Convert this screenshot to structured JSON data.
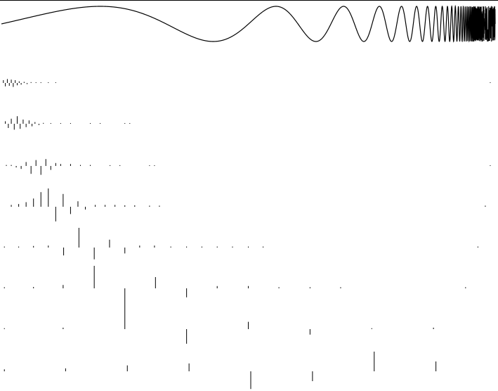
{
  "chart_data": [
    {
      "type": "line",
      "title": "",
      "xlabel": "",
      "ylabel": "",
      "grid": false,
      "legend": "none",
      "function": "sin(2*pi/(1-t))",
      "x_domain": [
        0,
        1
      ],
      "color": "#000000"
    },
    {
      "type": "stem",
      "title": "",
      "legend": "none",
      "grid": false,
      "color": "#000000",
      "rows": [
        {
          "scale": 1,
          "stems": [
            [
              0.004,
              0.5
            ],
            [
              0.008,
              -0.6
            ],
            [
              0.012,
              0.7
            ],
            [
              0.016,
              -0.5
            ],
            [
              0.02,
              0.6
            ],
            [
              0.024,
              -0.7
            ],
            [
              0.028,
              0.5
            ],
            [
              0.032,
              -0.4
            ],
            [
              0.036,
              0.3
            ],
            [
              0.04,
              -0.3
            ],
            [
              0.046,
              0.2
            ],
            [
              0.052,
              -0.2
            ],
            [
              0.06,
              0.15
            ],
            [
              0.07,
              -0.1
            ],
            [
              0.08,
              0.1
            ],
            [
              0.095,
              0.08
            ],
            [
              0.11,
              0.1
            ],
            [
              0.99,
              0.08
            ]
          ]
        },
        {
          "scale": 1,
          "stems": [
            [
              0.008,
              0.3
            ],
            [
              0.014,
              -0.5
            ],
            [
              0.02,
              0.6
            ],
            [
              0.026,
              -0.7
            ],
            [
              0.032,
              0.9
            ],
            [
              0.038,
              -0.6
            ],
            [
              0.044,
              0.5
            ],
            [
              0.05,
              -0.4
            ],
            [
              0.056,
              0.4
            ],
            [
              0.062,
              -0.3
            ],
            [
              0.068,
              0.2
            ],
            [
              0.076,
              -0.15
            ],
            [
              0.085,
              0.1
            ],
            [
              0.1,
              0.08
            ],
            [
              0.12,
              0.08
            ],
            [
              0.14,
              0.08
            ],
            [
              0.18,
              0.06
            ],
            [
              0.2,
              0.06
            ],
            [
              0.25,
              0.06
            ],
            [
              0.26,
              0.06
            ]
          ]
        },
        {
          "scale": 1,
          "stems": [
            [
              0.01,
              0.1
            ],
            [
              0.02,
              0.1
            ],
            [
              0.03,
              -0.15
            ],
            [
              0.04,
              -0.3
            ],
            [
              0.05,
              0.4
            ],
            [
              0.06,
              -0.8
            ],
            [
              0.07,
              0.6
            ],
            [
              0.08,
              -0.9
            ],
            [
              0.09,
              0.7
            ],
            [
              0.1,
              -0.4
            ],
            [
              0.11,
              0.3
            ],
            [
              0.12,
              0.2
            ],
            [
              0.14,
              0.2
            ],
            [
              0.16,
              0.1
            ],
            [
              0.18,
              0.1
            ],
            [
              0.22,
              0.08
            ],
            [
              0.24,
              0.08
            ],
            [
              0.3,
              0.06
            ],
            [
              0.31,
              0.06
            ],
            [
              0.99,
              0.06
            ]
          ]
        },
        {
          "scale": 1,
          "stems": [
            [
              0.02,
              0.1
            ],
            [
              0.035,
              0.15
            ],
            [
              0.05,
              0.25
            ],
            [
              0.065,
              0.45
            ],
            [
              0.08,
              0.8
            ],
            [
              0.095,
              1.0
            ],
            [
              0.11,
              -0.8
            ],
            [
              0.125,
              0.7
            ],
            [
              0.14,
              -0.4
            ],
            [
              0.155,
              0.3
            ],
            [
              0.17,
              -0.15
            ],
            [
              0.19,
              0.1
            ],
            [
              0.21,
              0.1
            ],
            [
              0.23,
              0.1
            ],
            [
              0.25,
              0.08
            ],
            [
              0.27,
              0.08
            ],
            [
              0.3,
              0.06
            ],
            [
              0.32,
              0.06
            ],
            [
              0.98,
              0.06
            ]
          ]
        },
        {
          "scale": 1,
          "stems": [
            [
              0.006,
              0.05
            ],
            [
              0.035,
              0.05
            ],
            [
              0.065,
              0.08
            ],
            [
              0.095,
              0.1
            ],
            [
              0.126,
              -0.4
            ],
            [
              0.157,
              1.0
            ],
            [
              0.188,
              -0.6
            ],
            [
              0.219,
              0.4
            ],
            [
              0.25,
              -0.3
            ],
            [
              0.28,
              0.1
            ],
            [
              0.31,
              0.1
            ],
            [
              0.343,
              0.05
            ],
            [
              0.375,
              0.05
            ],
            [
              0.406,
              0.05
            ],
            [
              0.437,
              0.05
            ],
            [
              0.468,
              0.05
            ],
            [
              0.5,
              0.05
            ],
            [
              0.53,
              0.05
            ],
            [
              0.965,
              0.05
            ]
          ]
        },
        {
          "scale": 1,
          "stems": [
            [
              0.006,
              0.05
            ],
            [
              0.065,
              0.06
            ],
            [
              0.125,
              0.15
            ],
            [
              0.188,
              1.0
            ],
            [
              0.25,
              -1.0
            ],
            [
              0.312,
              0.5
            ],
            [
              0.375,
              -0.4
            ],
            [
              0.437,
              0.1
            ],
            [
              0.5,
              0.1
            ],
            [
              0.562,
              0.05
            ],
            [
              0.625,
              0.05
            ],
            [
              0.687,
              0.05
            ],
            [
              0.94,
              0.05
            ]
          ]
        },
        {
          "scale": 1,
          "stems": [
            [
              0.006,
              0.05
            ],
            [
              0.125,
              0.08
            ],
            [
              0.25,
              1.0
            ],
            [
              0.375,
              -0.8
            ],
            [
              0.5,
              0.4
            ],
            [
              0.625,
              -0.3
            ],
            [
              0.75,
              0.05
            ],
            [
              0.875,
              0.08
            ]
          ]
        },
        {
          "scale": 1,
          "stems": [
            [
              0.006,
              0.1
            ],
            [
              0.13,
              0.15
            ],
            [
              0.255,
              0.3
            ],
            [
              0.38,
              0.4
            ],
            [
              0.505,
              -0.9
            ],
            [
              0.63,
              -0.5
            ],
            [
              0.755,
              1.0
            ],
            [
              0.88,
              0.5
            ]
          ]
        }
      ]
    }
  ]
}
